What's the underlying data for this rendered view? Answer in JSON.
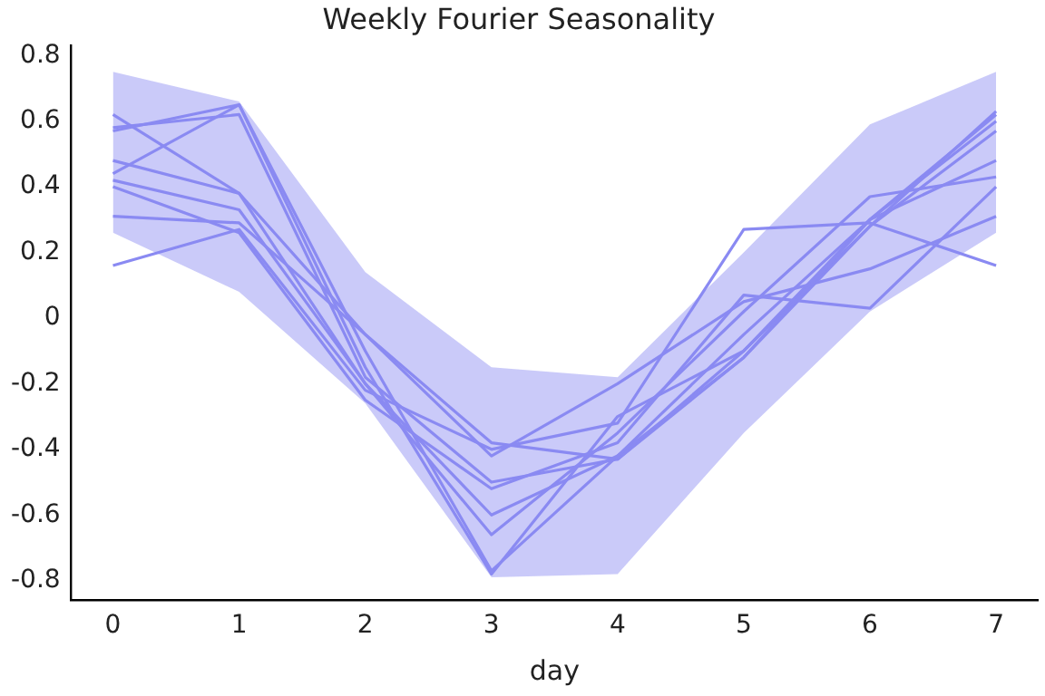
{
  "chart_data": {
    "type": "line",
    "title": "Weekly Fourier Seasonality",
    "xlabel": "day",
    "x": [
      0,
      1,
      2,
      3,
      4,
      5,
      6,
      7
    ],
    "series": [
      {
        "color": "#8a8af2",
        "values": [
          0.16,
          0.27,
          -0.22,
          -0.4,
          -0.32,
          0.27,
          0.29,
          0.16
        ],
        "lower": [
          0.26,
          0.08,
          -0.26,
          -0.79,
          -0.78,
          -0.35,
          0.02,
          0.26
        ],
        "upper": [
          0.75,
          0.66,
          0.14,
          -0.15,
          -0.18,
          0.2,
          0.59,
          0.75
        ]
      },
      {
        "color": "#8a8af2",
        "values": [
          0.31,
          0.29,
          -0.05,
          -0.42,
          -0.2,
          0.05,
          0.15,
          0.31
        ]
      },
      {
        "color": "#8a8af2",
        "values": [
          0.4,
          0.26,
          -0.25,
          -0.52,
          -0.38,
          0.07,
          0.03,
          0.4
        ]
      },
      {
        "color": "#8a8af2",
        "values": [
          0.42,
          0.33,
          -0.2,
          -0.6,
          -0.42,
          -0.05,
          0.3,
          0.48
        ]
      },
      {
        "color": "#8a8af2",
        "values": [
          0.44,
          0.65,
          -0.1,
          -0.77,
          -0.42,
          -0.12,
          0.3,
          0.6
        ]
      },
      {
        "color": "#8a8af2",
        "values": [
          0.48,
          0.38,
          -0.2,
          -0.66,
          -0.35,
          0.02,
          0.37,
          0.43
        ]
      },
      {
        "color": "#8a8af2",
        "values": [
          0.57,
          0.65,
          -0.15,
          -0.78,
          -0.3,
          -0.1,
          0.3,
          0.62
        ]
      },
      {
        "color": "#8a8af2",
        "values": [
          0.58,
          0.62,
          -0.18,
          -0.5,
          -0.43,
          -0.12,
          0.28,
          0.57
        ]
      },
      {
        "color": "#8a8af2",
        "values": [
          0.62,
          0.38,
          -0.05,
          -0.38,
          -0.43,
          -0.1,
          0.28,
          0.63
        ]
      }
    ],
    "xlim": [
      -0.33,
      7.33
    ],
    "xticks": [
      0,
      1,
      2,
      3,
      4,
      5,
      6,
      7
    ],
    "ylim": [
      -0.86,
      0.83
    ],
    "yticks": [
      -0.8,
      -0.6,
      -0.4,
      -0.2,
      0.0,
      0.2,
      0.4,
      0.6,
      0.8
    ],
    "grid": false,
    "legend": false,
    "marker": "none",
    "line_style": "solid"
  }
}
